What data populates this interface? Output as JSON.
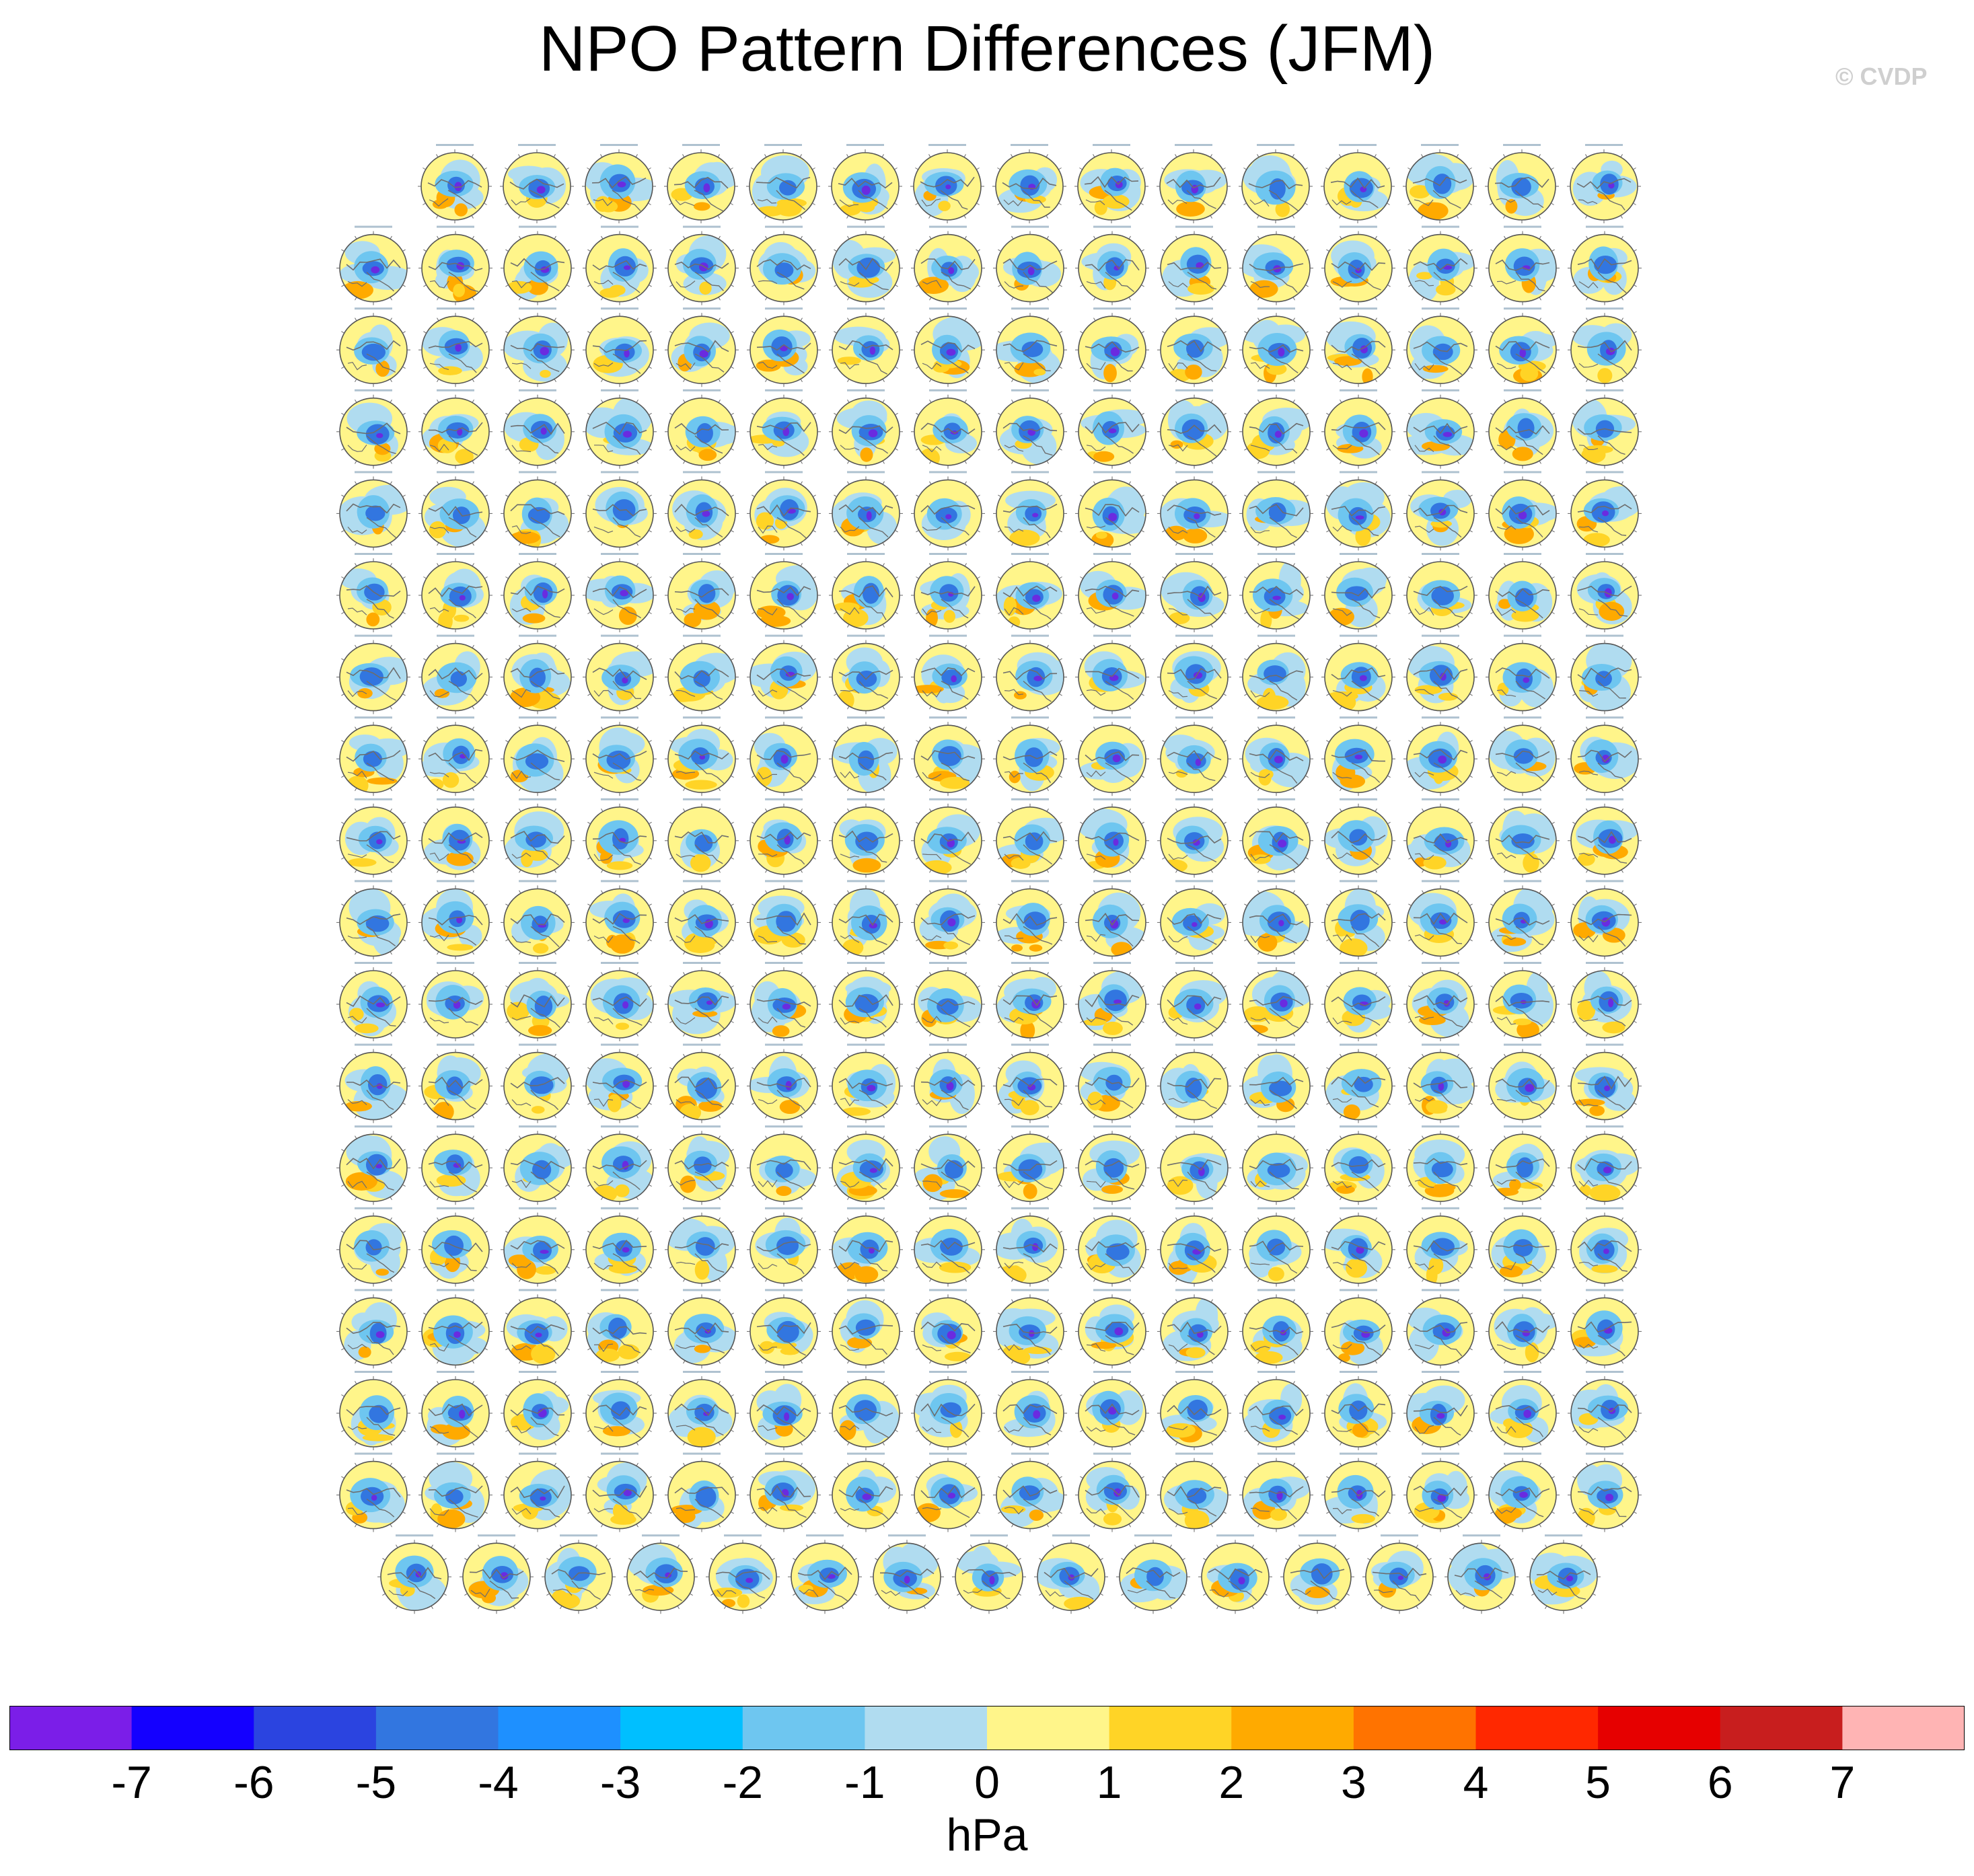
{
  "title": "NPO Pattern Differences (JFM)",
  "copyright": "© CVDP",
  "units": "hPa",
  "panel_grid": {
    "row_counts": [
      15,
      16,
      16,
      16,
      16,
      16,
      16,
      16,
      16,
      16,
      16,
      16,
      16,
      16,
      16,
      16,
      16,
      15
    ],
    "total_panels": 286,
    "projection": "polar stereographic (Northern Hemisphere)"
  },
  "colorbar": {
    "tick_labels": [
      "-7",
      "-6",
      "-5",
      "-4",
      "-3",
      "-2",
      "-1",
      "0",
      "1",
      "2",
      "3",
      "4",
      "5",
      "6",
      "7"
    ],
    "colors": [
      "#7b1ee8",
      "#1400ff",
      "#2b44e0",
      "#3276e0",
      "#1e90ff",
      "#00bfff",
      "#6ec6f0",
      "#b0dcf0",
      "#fff58a",
      "#ffd426",
      "#ffaa00",
      "#ff7300",
      "#ff2800",
      "#e60000",
      "#c81e1e",
      "#ffb4b4"
    ]
  },
  "panel_palette": {
    "background": "#fff58a",
    "neg_weak": "#b0dcf0",
    "neg_mid": "#6ec6f0",
    "neg_strong": "#3276e0",
    "neg_core": "#6a2be0",
    "pos_mid": "#ffd426",
    "pos_strong": "#ffaa00",
    "coast": "#6d6d6d"
  }
}
